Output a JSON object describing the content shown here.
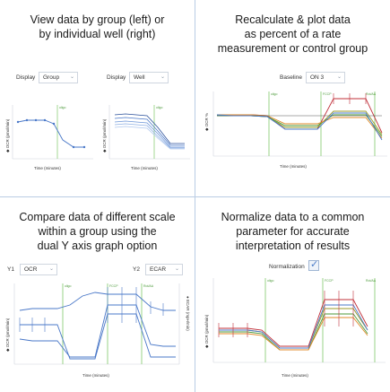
{
  "panels": {
    "tl": {
      "title_line1": "View data by group (left) or",
      "title_line2": "by individual well (right)",
      "display_label_left": "Display",
      "display_value_left": "Group",
      "display_label_right": "Display",
      "display_value_right": "Well"
    },
    "tr": {
      "title_line1": "Recalculate & plot data",
      "title_line2": "as percent of a rate",
      "title_line3": "measurement or control group",
      "baseline_label": "Baseline",
      "baseline_value": "ON 3"
    },
    "bl": {
      "title_line1": "Compare data of different scale",
      "title_line2": "within a group using the",
      "title_line3": "dual Y axis graph option",
      "y1_label": "Y1",
      "y1_value": "OCR",
      "y2_label": "Y2",
      "y2_value": "ECAR"
    },
    "br": {
      "title_line1": "Normalize data to a common",
      "title_line2": "parameter for accurate",
      "title_line3": "interpretation of results",
      "normalization_label": "Normalization"
    }
  },
  "axis_text": {
    "time_minutes": "Time (minutes)",
    "ocr_pmol": "◆ OCR (pmol/min)",
    "ocr_percent": "◆ OCR %",
    "ecar": "● ECAR (mpH/min)"
  },
  "injection_labels": [
    "oligo",
    "FCCP",
    "Rot/AA"
  ],
  "colors": {
    "divider": "#b9cce4",
    "series_blue": "#4a78c8",
    "series_red": "#c0303a",
    "series_green": "#4c9a3a",
    "series_orange": "#e08a2a",
    "series_olive": "#9a9a2a",
    "injection_line": "#8fcf7a",
    "check": "#4a7bc8"
  }
}
